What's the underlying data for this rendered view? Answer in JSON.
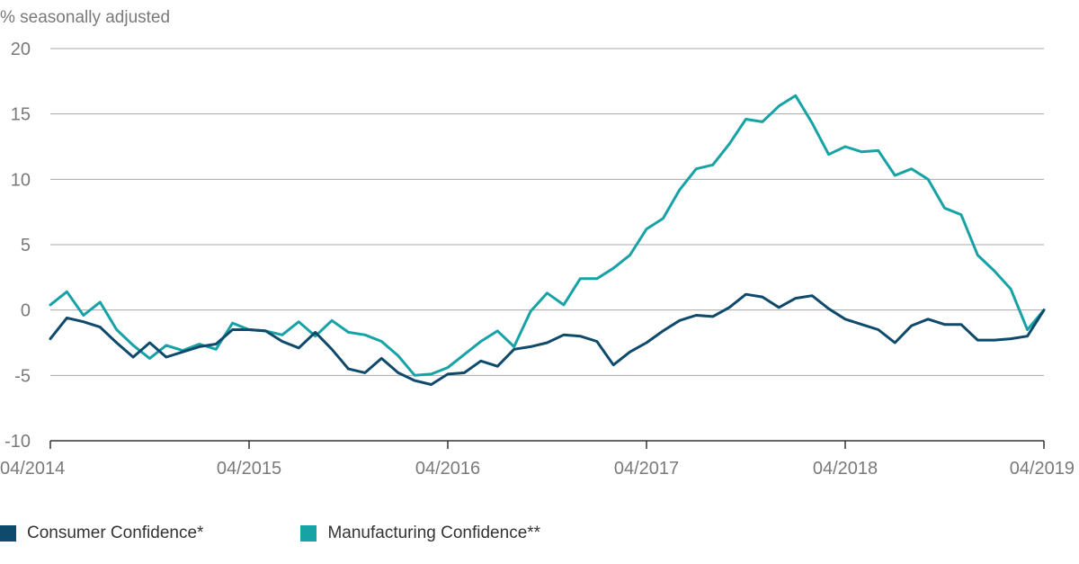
{
  "chart_data": {
    "type": "line",
    "ylabel": "% seasonally adjusted",
    "ylim": [
      -10,
      20
    ],
    "yticks": [
      20,
      15,
      10,
      5,
      0,
      -5,
      -10
    ],
    "x_start": "04/2014",
    "x_end": "04/2019",
    "xtick_labels": [
      "04/2014",
      "04/2015",
      "04/2016",
      "04/2017",
      "04/2018",
      "04/2019"
    ],
    "grid": true,
    "legend_position": "bottom-left",
    "series": [
      {
        "name": "Consumer Confidence*",
        "color": "#0e4a6b",
        "values": [
          -2.2,
          -0.6,
          -0.9,
          -1.3,
          -2.5,
          -3.6,
          -2.5,
          -3.6,
          -3.2,
          -2.8,
          -2.6,
          -1.5,
          -1.5,
          -1.6,
          -2.4,
          -2.9,
          -1.7,
          -3.0,
          -4.5,
          -4.8,
          -3.7,
          -4.8,
          -5.4,
          -5.7,
          -4.9,
          -4.8,
          -3.9,
          -4.3,
          -3.0,
          -2.8,
          -2.5,
          -1.9,
          -2.0,
          -2.4,
          -4.2,
          -3.2,
          -2.5,
          -1.6,
          -0.8,
          -0.4,
          -0.5,
          0.2,
          1.2,
          1.0,
          0.2,
          0.9,
          1.1,
          0.1,
          -0.7,
          -1.1,
          -1.5,
          -2.5,
          -1.2,
          -0.7,
          -1.1,
          -1.1,
          -2.3,
          -2.3,
          -2.2,
          -2.0,
          0.0
        ]
      },
      {
        "name": "Manufacturing Confidence**",
        "color": "#17a2a6",
        "values": [
          0.4,
          1.4,
          -0.4,
          0.6,
          -1.5,
          -2.7,
          -3.7,
          -2.7,
          -3.1,
          -2.6,
          -3.0,
          -1.0,
          -1.5,
          -1.6,
          -1.9,
          -0.9,
          -2.0,
          -0.8,
          -1.7,
          -1.9,
          -2.4,
          -3.5,
          -5.0,
          -4.9,
          -4.4,
          -3.4,
          -2.4,
          -1.6,
          -2.8,
          -0.1,
          1.3,
          0.4,
          2.4,
          2.4,
          3.2,
          4.2,
          6.2,
          7.0,
          9.2,
          10.8,
          11.1,
          12.7,
          14.6,
          14.4,
          15.6,
          16.4,
          14.3,
          11.9,
          12.5,
          12.1,
          12.2,
          10.3,
          10.8,
          10.0,
          7.8,
          7.3,
          4.2,
          3.0,
          1.6,
          -1.5,
          0.0
        ]
      }
    ]
  }
}
